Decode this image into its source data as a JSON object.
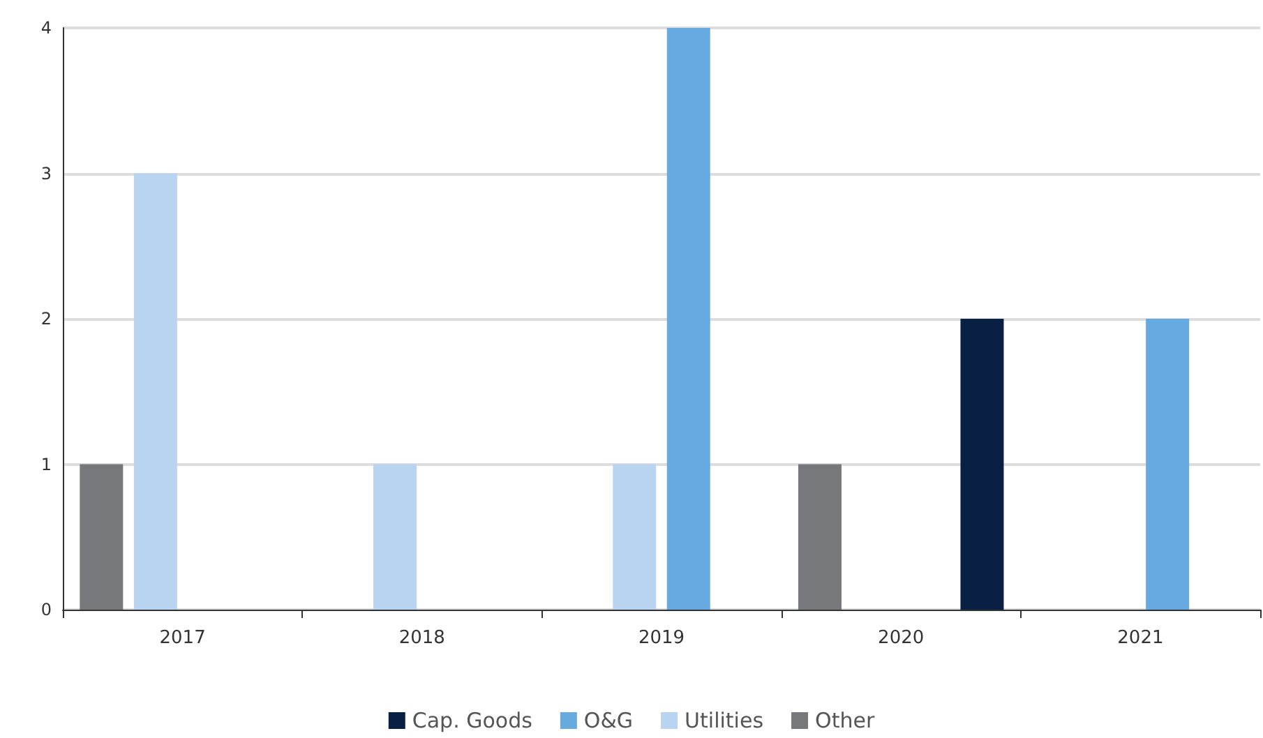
{
  "chart_data": {
    "type": "bar",
    "categories": [
      "2017",
      "2018",
      "2019",
      "2020",
      "2021"
    ],
    "series": [
      {
        "name": "Other",
        "color": "#77787b",
        "values": [
          1,
          0,
          0,
          1,
          0
        ]
      },
      {
        "name": "Utilities",
        "color": "#b8d4f0",
        "values": [
          3,
          1,
          1,
          0,
          0
        ]
      },
      {
        "name": "O&G",
        "color": "#67aadf",
        "values": [
          0,
          0,
          4,
          0,
          2
        ]
      },
      {
        "name": "Cap. Goods",
        "color": "#0a1f44",
        "values": [
          0,
          0,
          0,
          2,
          0
        ]
      }
    ],
    "ylim": [
      0,
      4
    ],
    "yticks": [
      0,
      1,
      2,
      3,
      4
    ],
    "grid": "y",
    "legend": "bottom"
  }
}
